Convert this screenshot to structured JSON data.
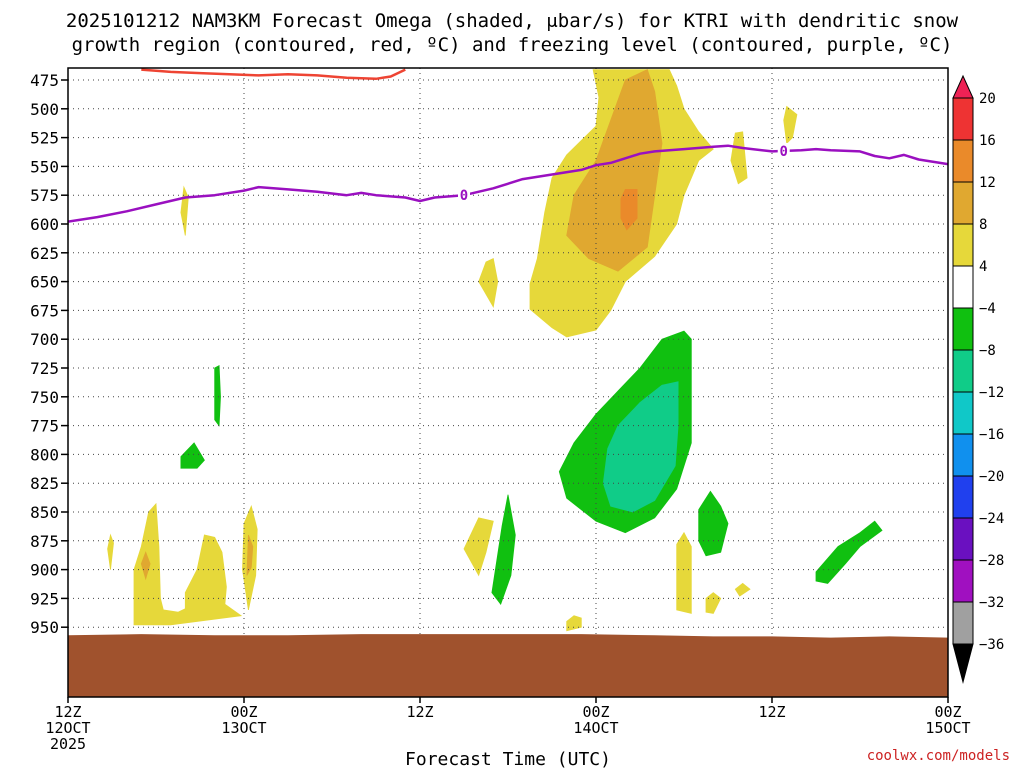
{
  "chart_data": {
    "type": "contour",
    "title_lines": [
      "2025101212 NAM3KM Forecast Omega (shaded, μbar/s) for KTRI with dendritic snow",
      "growth region (contoured, red, ºC) and freezing level (contoured, purple, ºC)"
    ],
    "xlabel": "Forecast Time (UTC)",
    "x_ticks": [
      {
        "hour": 0,
        "lines": [
          "12Z",
          "12OCT",
          "2025"
        ]
      },
      {
        "hour": 12,
        "lines": [
          "00Z",
          "13OCT"
        ]
      },
      {
        "hour": 24,
        "lines": [
          "12Z"
        ]
      },
      {
        "hour": 36,
        "lines": [
          "00Z",
          "14OCT"
        ]
      },
      {
        "hour": 48,
        "lines": [
          "12Z"
        ]
      },
      {
        "hour": 60,
        "lines": [
          "00Z",
          "15OCT"
        ]
      }
    ],
    "xlim_hours": [
      0,
      60
    ],
    "ylim_hpa": [
      466,
      975
    ],
    "y_ticks": [
      475,
      500,
      525,
      550,
      575,
      600,
      625,
      650,
      675,
      700,
      725,
      750,
      775,
      800,
      825,
      850,
      875,
      900,
      925,
      950
    ],
    "grid": true,
    "colorbar": {
      "labels": [
        "20",
        "16",
        "12",
        "8",
        "4",
        "−4",
        "−8",
        "−12",
        "−16",
        "−20",
        "−24",
        "−28",
        "−32",
        "−36"
      ],
      "colors": [
        "#ee2255",
        "#ee3333",
        "#ea8a2a",
        "#e0a830",
        "#e6d83a",
        "#ffffff",
        "#10c010",
        "#10cc88",
        "#10c8c8",
        "#1090ee",
        "#2040ee",
        "#6a10c0",
        "#a010c0",
        "#a0a0a0",
        "#000000"
      ]
    },
    "freezing_level": {
      "label": "0",
      "color": "#9a10c0",
      "points": [
        [
          0,
          598
        ],
        [
          2,
          594
        ],
        [
          4,
          589
        ],
        [
          6,
          583
        ],
        [
          8,
          577
        ],
        [
          10,
          575
        ],
        [
          12,
          571
        ],
        [
          13,
          568
        ],
        [
          15,
          570
        ],
        [
          17,
          572
        ],
        [
          19,
          575
        ],
        [
          20,
          573
        ],
        [
          21,
          575
        ],
        [
          23,
          577
        ],
        [
          24,
          580
        ],
        [
          25,
          577
        ],
        [
          27,
          575
        ],
        [
          29,
          569
        ],
        [
          31,
          561
        ],
        [
          33,
          557
        ],
        [
          35,
          553
        ],
        [
          36,
          549
        ],
        [
          37,
          547
        ],
        [
          38,
          543
        ],
        [
          39,
          539
        ],
        [
          40,
          537
        ],
        [
          42,
          535
        ],
        [
          44,
          533
        ],
        [
          45,
          532
        ],
        [
          46,
          534
        ],
        [
          48,
          537
        ],
        [
          50,
          536
        ],
        [
          51,
          535
        ],
        [
          52,
          536
        ],
        [
          54,
          537
        ],
        [
          55,
          541
        ],
        [
          56,
          543
        ],
        [
          57,
          540
        ],
        [
          58,
          544
        ],
        [
          60,
          548
        ]
      ],
      "label_positions_hours": [
        27,
        48.8
      ]
    },
    "dgz": {
      "color": "#ee4433",
      "points": [
        [
          5,
          466
        ],
        [
          7,
          468
        ],
        [
          9,
          469
        ],
        [
          11,
          470
        ],
        [
          13,
          471
        ],
        [
          15,
          470
        ],
        [
          17,
          471
        ],
        [
          19,
          473
        ],
        [
          21,
          474
        ],
        [
          22,
          472
        ],
        [
          23,
          466
        ]
      ]
    },
    "omega_regions": [
      {
        "value_band": "4 to 8",
        "color": "#e6d83a",
        "points": [
          [
            35.8,
            466
          ],
          [
            41,
            466
          ],
          [
            41.5,
            480
          ],
          [
            42,
            500
          ],
          [
            43,
            520
          ],
          [
            44,
            535
          ],
          [
            43,
            545
          ],
          [
            42,
            575
          ],
          [
            41.5,
            600
          ],
          [
            40,
            628
          ],
          [
            38,
            650
          ],
          [
            37,
            675
          ],
          [
            36,
            692
          ],
          [
            34,
            698
          ],
          [
            33,
            690
          ],
          [
            31.5,
            674
          ],
          [
            31.5,
            652
          ],
          [
            32,
            630
          ],
          [
            32.5,
            590
          ],
          [
            33,
            560
          ],
          [
            34,
            540
          ],
          [
            36,
            515
          ],
          [
            36.2,
            490
          ]
        ]
      },
      {
        "value_band": "8 to 12",
        "color": "#e0a830",
        "points": [
          [
            38,
            475
          ],
          [
            39.5,
            466
          ],
          [
            40,
            485
          ],
          [
            40.5,
            530
          ],
          [
            40,
            575
          ],
          [
            39.5,
            620
          ],
          [
            37.5,
            641
          ],
          [
            35.5,
            630
          ],
          [
            34,
            610
          ],
          [
            34.5,
            575
          ],
          [
            36,
            545
          ],
          [
            37,
            510
          ]
        ]
      },
      {
        "value_band": "12 to 16",
        "color": "#ea8a2a",
        "points": [
          [
            38,
            570
          ],
          [
            38.8,
            570
          ],
          [
            38.8,
            595
          ],
          [
            38.1,
            605
          ],
          [
            37.7,
            595
          ],
          [
            37.7,
            578
          ]
        ]
      },
      {
        "value_band": "4 to 8",
        "color": "#e6d83a",
        "points": [
          [
            49,
            498
          ],
          [
            49.7,
            505
          ],
          [
            49.4,
            525
          ],
          [
            49,
            530
          ],
          [
            48.8,
            510
          ]
        ]
      },
      {
        "value_band": "4 to 8",
        "color": "#e6d83a",
        "points": [
          [
            45.5,
            521
          ],
          [
            46,
            520
          ],
          [
            46.3,
            560
          ],
          [
            45.7,
            565
          ],
          [
            45.2,
            545
          ]
        ]
      },
      {
        "value_band": "4 to 8",
        "color": "#e6d83a",
        "points": [
          [
            28.5,
            633
          ],
          [
            29,
            630
          ],
          [
            29.3,
            650
          ],
          [
            29,
            672
          ],
          [
            28,
            650
          ]
        ]
      },
      {
        "value_band": "4 to 8",
        "color": "#e6d83a",
        "points": [
          [
            7.9,
            568
          ],
          [
            8.2,
            577
          ],
          [
            8,
            610
          ],
          [
            7.7,
            590
          ]
        ]
      },
      {
        "value_band": "4 to 8",
        "color": "#e6d83a",
        "points": [
          [
            2.9,
            870
          ],
          [
            3.1,
            877
          ],
          [
            2.9,
            900
          ],
          [
            2.7,
            882
          ]
        ]
      },
      {
        "value_band": "4 to 8",
        "color": "#e6d83a",
        "points": [
          [
            4.5,
            900
          ],
          [
            5,
            880
          ],
          [
            5.5,
            850
          ],
          [
            6,
            843
          ],
          [
            6.2,
            880
          ],
          [
            6.3,
            925
          ],
          [
            6.5,
            935
          ],
          [
            7.5,
            937
          ],
          [
            8,
            934
          ],
          [
            8,
            920
          ],
          [
            8.8,
            900
          ],
          [
            9.3,
            870
          ],
          [
            10,
            872
          ],
          [
            10.5,
            885
          ],
          [
            10.8,
            915
          ],
          [
            10.7,
            930
          ],
          [
            11.8,
            940
          ],
          [
            7,
            948
          ],
          [
            4.5,
            948
          ]
        ]
      },
      {
        "value_band": "4 to 8",
        "color": "#e6d83a",
        "points": [
          [
            12,
            860
          ],
          [
            12.5,
            845
          ],
          [
            12.9,
            865
          ],
          [
            12.8,
            905
          ],
          [
            12.3,
            935
          ],
          [
            11.9,
            900
          ]
        ]
      },
      {
        "value_band": "4 to 8",
        "color": "#e6d83a",
        "points": [
          [
            27,
            882
          ],
          [
            28,
            855
          ],
          [
            29,
            858
          ],
          [
            28.5,
            885
          ],
          [
            28,
            905
          ]
        ]
      },
      {
        "value_band": "4 to 8",
        "color": "#e6d83a",
        "points": [
          [
            34,
            945
          ],
          [
            34.5,
            940
          ],
          [
            35,
            942
          ],
          [
            35,
            950
          ],
          [
            34,
            953
          ]
        ]
      },
      {
        "value_band": "4 to 8",
        "color": "#e6d83a",
        "points": [
          [
            41.5,
            878
          ],
          [
            42,
            868
          ],
          [
            42.5,
            880
          ],
          [
            42.5,
            938
          ],
          [
            41.5,
            935
          ]
        ]
      },
      {
        "value_band": "4 to 8",
        "color": "#e6d83a",
        "points": [
          [
            43.5,
            925
          ],
          [
            44,
            920
          ],
          [
            44.5,
            925
          ],
          [
            44,
            938
          ],
          [
            43.5,
            937
          ]
        ]
      },
      {
        "value_band": "4 to 8",
        "color": "#e6d83a",
        "points": [
          [
            45.5,
            917
          ],
          [
            46,
            912
          ],
          [
            46.5,
            917
          ],
          [
            45.8,
            923
          ]
        ]
      },
      {
        "value_band": "8 to 12",
        "color": "#e0a830",
        "points": [
          [
            5,
            895
          ],
          [
            5.3,
            885
          ],
          [
            5.6,
            895
          ],
          [
            5.3,
            908
          ]
        ]
      },
      {
        "value_band": "8 to 12",
        "color": "#e0a830",
        "points": [
          [
            12.3,
            870
          ],
          [
            12.6,
            880
          ],
          [
            12.5,
            898
          ],
          [
            12.2,
            905
          ]
        ]
      },
      {
        "value_band": "-4 to -8",
        "color": "#10c010",
        "points": [
          [
            36,
            765
          ],
          [
            37.5,
            745
          ],
          [
            39,
            725
          ],
          [
            40.5,
            700
          ],
          [
            42,
            693
          ],
          [
            42.5,
            700
          ],
          [
            42.5,
            745
          ],
          [
            42.5,
            790
          ],
          [
            41.5,
            830
          ],
          [
            40,
            855
          ],
          [
            38,
            868
          ],
          [
            36,
            858
          ],
          [
            34,
            838
          ],
          [
            33.5,
            815
          ],
          [
            34.5,
            790
          ]
        ]
      },
      {
        "value_band": "-8 to -12",
        "color": "#10cc88",
        "points": [
          [
            37.5,
            775
          ],
          [
            39,
            755
          ],
          [
            40.5,
            740
          ],
          [
            41.6,
            737
          ],
          [
            41.6,
            775
          ],
          [
            41.4,
            810
          ],
          [
            40,
            840
          ],
          [
            38.5,
            850
          ],
          [
            37,
            845
          ],
          [
            36.5,
            825
          ],
          [
            36.8,
            795
          ]
        ]
      },
      {
        "value_band": "-4 to -8",
        "color": "#10c010",
        "points": [
          [
            10,
            725
          ],
          [
            10.3,
            723
          ],
          [
            10.4,
            750
          ],
          [
            10.3,
            775
          ],
          [
            10,
            770
          ]
        ]
      },
      {
        "value_band": "-4 to -8",
        "color": "#10c010",
        "points": [
          [
            7.7,
            802
          ],
          [
            8.6,
            790
          ],
          [
            9.3,
            805
          ],
          [
            8.8,
            812
          ],
          [
            7.7,
            812
          ]
        ]
      },
      {
        "value_band": "-4 to -8",
        "color": "#10c010",
        "points": [
          [
            29.6,
            862
          ],
          [
            30,
            835
          ],
          [
            30.5,
            870
          ],
          [
            30.2,
            905
          ],
          [
            29.5,
            930
          ],
          [
            28.9,
            920
          ]
        ]
      },
      {
        "value_band": "-4 to -8",
        "color": "#10c010",
        "points": [
          [
            43,
            848
          ],
          [
            43.8,
            832
          ],
          [
            44.5,
            845
          ],
          [
            45,
            860
          ],
          [
            44.5,
            885
          ],
          [
            43.5,
            888
          ],
          [
            43,
            875
          ]
        ]
      },
      {
        "value_band": "-4 to -8",
        "color": "#10c010",
        "points": [
          [
            51,
            902
          ],
          [
            52.5,
            880
          ],
          [
            54,
            868
          ],
          [
            55,
            858
          ],
          [
            55.5,
            866
          ],
          [
            54,
            880
          ],
          [
            53,
            895
          ],
          [
            51.8,
            912
          ],
          [
            51,
            910
          ]
        ]
      }
    ],
    "terrain": {
      "color": "#a0522d",
      "points": [
        [
          0,
          957
        ],
        [
          5,
          956
        ],
        [
          10,
          957
        ],
        [
          15,
          957
        ],
        [
          20,
          956
        ],
        [
          25,
          956
        ],
        [
          30,
          956
        ],
        [
          35,
          956
        ],
        [
          40,
          957
        ],
        [
          44,
          958
        ],
        [
          48,
          958
        ],
        [
          52,
          959
        ],
        [
          56,
          958
        ],
        [
          60,
          959
        ]
      ]
    },
    "credit": "coolwx.com/models"
  }
}
